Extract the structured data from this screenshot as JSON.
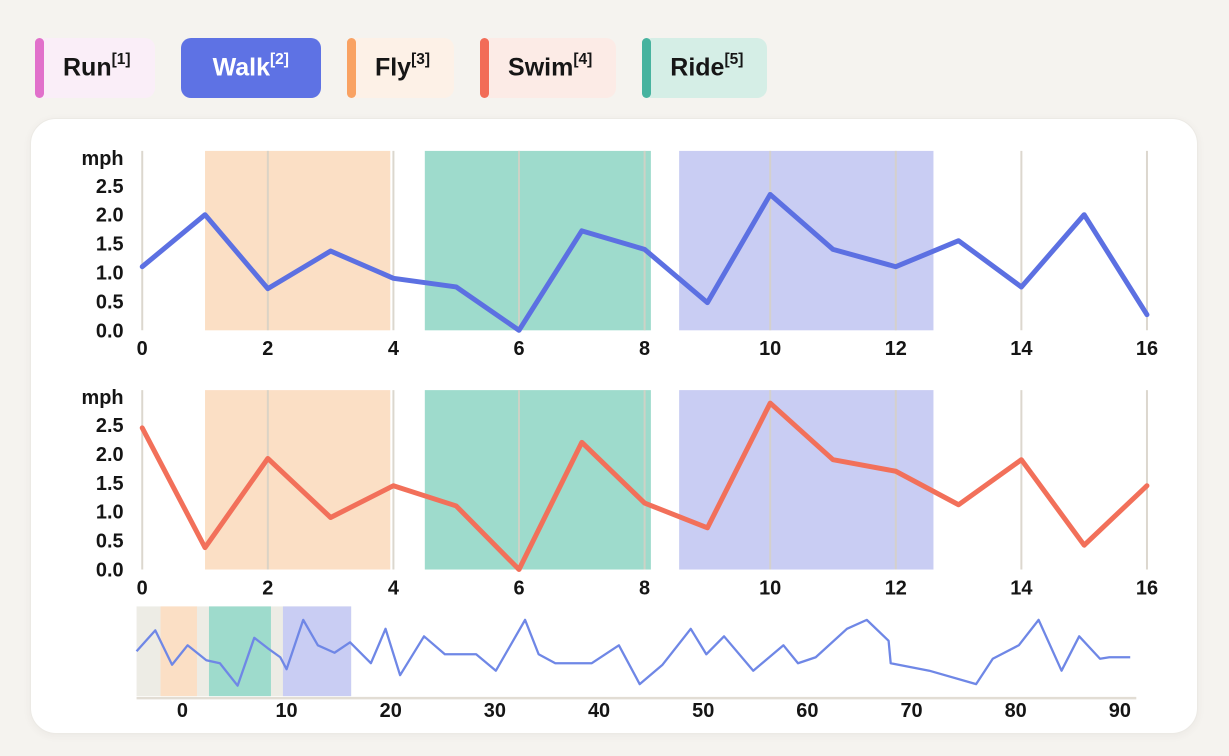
{
  "page": {
    "background": "#f5f3ef",
    "card_background": "#ffffff"
  },
  "toolbar": {
    "tabs": [
      {
        "label": "Run",
        "superscript": "[1]",
        "accent": "#e170cb",
        "bg": "#faeef8",
        "text_color": "#161616",
        "selected": false
      },
      {
        "label": "Walk",
        "superscript": "[2]",
        "accent": "#5e72e4",
        "bg": "#5e72e4",
        "text_color": "#ffffff",
        "selected": true
      },
      {
        "label": "Fly",
        "superscript": "[3]",
        "accent": "#f9a263",
        "bg": "#fdf1e7",
        "text_color": "#161616",
        "selected": false
      },
      {
        "label": "Swim",
        "superscript": "[4]",
        "accent": "#f26c57",
        "bg": "#fcebe6",
        "text_color": "#161616",
        "selected": false
      },
      {
        "label": "Ride",
        "superscript": "[5]",
        "accent": "#47b39f",
        "bg": "#d5eee6",
        "text_color": "#161616",
        "selected": false
      }
    ]
  },
  "colors": {
    "walk_line": "#5c70e2",
    "swim_line": "#f2705a",
    "overview_line": "#6f87e6",
    "region_fly": "#fbdfc5",
    "region_ride": "#9edbcc",
    "region_walk": "#c9cdf3",
    "overview_selection": "#edece5",
    "gridline": "#d6d1c6",
    "axis_line": "#e2ddd4",
    "tick_text": "#151515"
  },
  "chart_data": [
    {
      "type": "line",
      "name": "Walk",
      "ylabel": "mph",
      "x": [
        0,
        1,
        2,
        3,
        4,
        5,
        6,
        7,
        8,
        9,
        10,
        11,
        12,
        13,
        14,
        15,
        16
      ],
      "values": [
        1.1,
        2.0,
        0.72,
        1.37,
        0.9,
        0.75,
        0.0,
        1.72,
        1.4,
        0.48,
        2.35,
        1.4,
        1.1,
        1.55,
        0.75,
        2.0,
        0.27
      ],
      "x_ticks": [
        0,
        2,
        4,
        6,
        8,
        10,
        12,
        14,
        16
      ],
      "y_ticks": [
        2.5,
        2.0,
        1.5,
        1.0,
        0.5,
        0.0
      ],
      "ylim": [
        0,
        3.1
      ],
      "xlim": [
        -0.1,
        16.3
      ],
      "grid": "vertical",
      "line_color": "#5c70e2",
      "regions": [
        {
          "kind": "fly",
          "from": 1.0,
          "to": 3.95,
          "color": "#fbdfc5"
        },
        {
          "kind": "ride",
          "from": 4.5,
          "to": 8.1,
          "color": "#9edbcc"
        },
        {
          "kind": "walk",
          "from": 8.55,
          "to": 12.6,
          "color": "#c9cdf3"
        }
      ]
    },
    {
      "type": "line",
      "name": "Swim",
      "ylabel": "mph",
      "x": [
        0,
        1,
        2,
        3,
        4,
        5,
        6,
        7,
        8,
        9,
        10,
        11,
        12,
        13,
        14,
        15,
        16
      ],
      "values": [
        2.45,
        0.38,
        1.92,
        0.9,
        1.45,
        1.1,
        0.0,
        2.2,
        1.15,
        0.72,
        2.88,
        1.9,
        1.7,
        1.12,
        1.9,
        0.42,
        1.45
      ],
      "x_ticks": [
        0,
        2,
        4,
        6,
        8,
        10,
        12,
        14,
        16
      ],
      "y_ticks": [
        2.5,
        2.0,
        1.5,
        1.0,
        0.5,
        0.0
      ],
      "ylim": [
        0,
        3.1
      ],
      "xlim": [
        -0.1,
        16.3
      ],
      "grid": "vertical",
      "line_color": "#f2705a",
      "regions": [
        {
          "kind": "fly",
          "from": 1.0,
          "to": 3.95,
          "color": "#fbdfc5"
        },
        {
          "kind": "ride",
          "from": 4.5,
          "to": 8.1,
          "color": "#9edbcc"
        },
        {
          "kind": "walk",
          "from": 8.55,
          "to": 12.6,
          "color": "#c9cdf3"
        }
      ]
    },
    {
      "type": "line",
      "name": "overview",
      "x_ticks": [
        0,
        10,
        20,
        30,
        40,
        50,
        60,
        70,
        80,
        90
      ],
      "ylim": [
        0,
        3
      ],
      "xlim": [
        -4.4,
        92.5
      ],
      "line_color": "#6f87e6",
      "selection_window": {
        "from": -4.4,
        "to": 16.2,
        "color": "#edece5"
      },
      "regions": [
        {
          "kind": "fly",
          "from": -2.1,
          "to": 1.4,
          "color": "#fbdfc5"
        },
        {
          "kind": "ride",
          "from": 2.55,
          "to": 8.5,
          "color": "#9edbcc"
        },
        {
          "kind": "walk",
          "from": 9.65,
          "to": 16.2,
          "color": "#c9cdf3"
        }
      ],
      "points": [
        [
          -4.4,
          1.5
        ],
        [
          -2.6,
          2.2
        ],
        [
          -1.0,
          1.05
        ],
        [
          0.5,
          1.7
        ],
        [
          2.3,
          1.2
        ],
        [
          3.6,
          1.1
        ],
        [
          5.3,
          0.35
        ],
        [
          6.9,
          1.95
        ],
        [
          8.2,
          1.6
        ],
        [
          9.4,
          1.3
        ],
        [
          10.0,
          0.9
        ],
        [
          11.6,
          2.55
        ],
        [
          13.0,
          1.7
        ],
        [
          14.6,
          1.45
        ],
        [
          16.1,
          1.8
        ],
        [
          18.1,
          1.1
        ],
        [
          19.5,
          2.25
        ],
        [
          20.9,
          0.7
        ],
        [
          23.2,
          2.0
        ],
        [
          25.2,
          1.4
        ],
        [
          28.2,
          1.4
        ],
        [
          30.1,
          0.85
        ],
        [
          32.9,
          2.55
        ],
        [
          34.2,
          1.4
        ],
        [
          35.8,
          1.1
        ],
        [
          39.3,
          1.1
        ],
        [
          41.9,
          1.7
        ],
        [
          43.9,
          0.4
        ],
        [
          46.1,
          1.05
        ],
        [
          48.8,
          2.25
        ],
        [
          50.3,
          1.4
        ],
        [
          52.0,
          2.0
        ],
        [
          54.8,
          0.85
        ],
        [
          57.7,
          1.7
        ],
        [
          59.1,
          1.1
        ],
        [
          60.8,
          1.3
        ],
        [
          63.8,
          2.25
        ],
        [
          65.7,
          2.55
        ],
        [
          67.8,
          1.85
        ],
        [
          68.0,
          1.1
        ],
        [
          71.7,
          0.85
        ],
        [
          76.2,
          0.4
        ],
        [
          77.8,
          1.25
        ],
        [
          80.3,
          1.7
        ],
        [
          82.2,
          2.55
        ],
        [
          84.4,
          0.85
        ],
        [
          86.1,
          2.0
        ],
        [
          88.1,
          1.25
        ],
        [
          89.0,
          1.3
        ],
        [
          91.0,
          1.3
        ]
      ]
    }
  ]
}
